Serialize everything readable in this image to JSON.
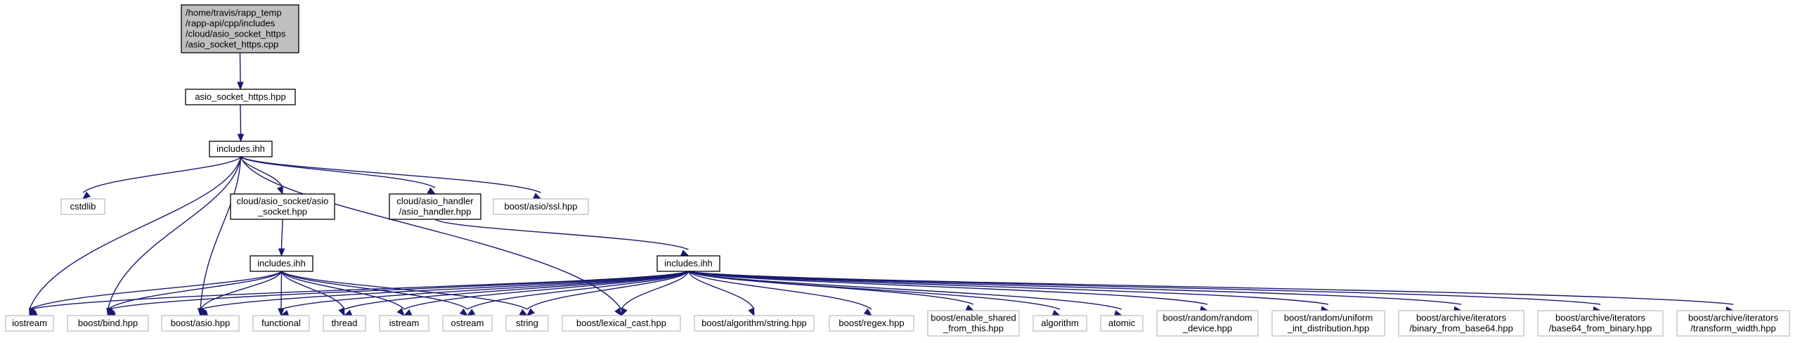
{
  "nodes": [
    {
      "id": "root",
      "lines": [
        "/home/travis/rapp_temp",
        "/rapp-api/cpp/includes",
        "/cloud/asio_socket_https",
        "/asio_socket_https.cpp"
      ],
      "kind": "root"
    },
    {
      "id": "asio_https_hpp",
      "lines": [
        "asio_socket_https.hpp"
      ],
      "kind": "file"
    },
    {
      "id": "inc1",
      "lines": [
        "includes.ihh"
      ],
      "kind": "file"
    },
    {
      "id": "cstdlib",
      "lines": [
        "cstdlib"
      ],
      "kind": "ext"
    },
    {
      "id": "asio_socket_hpp",
      "lines": [
        "cloud/asio_socket/asio",
        "_socket.hpp"
      ],
      "kind": "file"
    },
    {
      "id": "asio_handler_hpp",
      "lines": [
        "cloud/asio_handler",
        "/asio_handler.hpp"
      ],
      "kind": "file"
    },
    {
      "id": "ssl",
      "lines": [
        "boost/asio/ssl.hpp"
      ],
      "kind": "ext"
    },
    {
      "id": "inc2",
      "lines": [
        "includes.ihh"
      ],
      "kind": "file"
    },
    {
      "id": "inc3",
      "lines": [
        "includes.ihh"
      ],
      "kind": "file"
    },
    {
      "id": "iostream",
      "lines": [
        "iostream"
      ],
      "kind": "ext"
    },
    {
      "id": "bind",
      "lines": [
        "boost/bind.hpp"
      ],
      "kind": "ext"
    },
    {
      "id": "asio",
      "lines": [
        "boost/asio.hpp"
      ],
      "kind": "ext"
    },
    {
      "id": "functional",
      "lines": [
        "functional"
      ],
      "kind": "ext"
    },
    {
      "id": "thread",
      "lines": [
        "thread"
      ],
      "kind": "ext"
    },
    {
      "id": "istream",
      "lines": [
        "istream"
      ],
      "kind": "ext"
    },
    {
      "id": "ostream",
      "lines": [
        "ostream"
      ],
      "kind": "ext"
    },
    {
      "id": "string",
      "lines": [
        "string"
      ],
      "kind": "ext"
    },
    {
      "id": "lexical_cast",
      "lines": [
        "boost/lexical_cast.hpp"
      ],
      "kind": "ext"
    },
    {
      "id": "algo_string",
      "lines": [
        "boost/algorithm/string.hpp"
      ],
      "kind": "ext"
    },
    {
      "id": "regex",
      "lines": [
        "boost/regex.hpp"
      ],
      "kind": "ext"
    },
    {
      "id": "enable_shared",
      "lines": [
        "boost/enable_shared",
        "_from_this.hpp"
      ],
      "kind": "ext"
    },
    {
      "id": "algorithm",
      "lines": [
        "algorithm"
      ],
      "kind": "ext"
    },
    {
      "id": "atomic",
      "lines": [
        "atomic"
      ],
      "kind": "ext"
    },
    {
      "id": "random_device",
      "lines": [
        "boost/random/random",
        "_device.hpp"
      ],
      "kind": "ext"
    },
    {
      "id": "uniform_int",
      "lines": [
        "boost/random/uniform",
        "_int_distribution.hpp"
      ],
      "kind": "ext"
    },
    {
      "id": "binary_from_base64",
      "lines": [
        "boost/archive/iterators",
        "/binary_from_base64.hpp"
      ],
      "kind": "ext"
    },
    {
      "id": "base64_from_binary",
      "lines": [
        "boost/archive/iterators",
        "/base64_from_binary.hpp"
      ],
      "kind": "ext"
    },
    {
      "id": "transform_width",
      "lines": [
        "boost/archive/iterators",
        "/transform_width.hpp"
      ],
      "kind": "ext"
    }
  ],
  "edges": [
    [
      "root",
      "asio_https_hpp"
    ],
    [
      "asio_https_hpp",
      "inc1"
    ],
    [
      "inc1",
      "cstdlib"
    ],
    [
      "inc1",
      "asio_socket_hpp"
    ],
    [
      "inc1",
      "asio_handler_hpp"
    ],
    [
      "inc1",
      "ssl"
    ],
    [
      "inc1",
      "iostream"
    ],
    [
      "inc1",
      "bind"
    ],
    [
      "inc1",
      "asio"
    ],
    [
      "inc1",
      "lexical_cast"
    ],
    [
      "asio_socket_hpp",
      "inc2"
    ],
    [
      "asio_handler_hpp",
      "inc3"
    ],
    [
      "inc2",
      "iostream"
    ],
    [
      "inc2",
      "bind"
    ],
    [
      "inc2",
      "asio"
    ],
    [
      "inc2",
      "functional"
    ],
    [
      "inc2",
      "thread"
    ],
    [
      "inc2",
      "istream"
    ],
    [
      "inc2",
      "ostream"
    ],
    [
      "inc2",
      "string"
    ],
    [
      "inc3",
      "iostream"
    ],
    [
      "inc3",
      "bind"
    ],
    [
      "inc3",
      "asio"
    ],
    [
      "inc3",
      "functional"
    ],
    [
      "inc3",
      "thread"
    ],
    [
      "inc3",
      "istream"
    ],
    [
      "inc3",
      "ostream"
    ],
    [
      "inc3",
      "string"
    ],
    [
      "inc3",
      "lexical_cast"
    ],
    [
      "inc3",
      "algo_string"
    ],
    [
      "inc3",
      "regex"
    ],
    [
      "inc3",
      "enable_shared"
    ],
    [
      "inc3",
      "algorithm"
    ],
    [
      "inc3",
      "atomic"
    ],
    [
      "inc3",
      "random_device"
    ],
    [
      "inc3",
      "uniform_int"
    ],
    [
      "inc3",
      "binary_from_base64"
    ],
    [
      "inc3",
      "base64_from_binary"
    ],
    [
      "inc3",
      "transform_width"
    ]
  ]
}
